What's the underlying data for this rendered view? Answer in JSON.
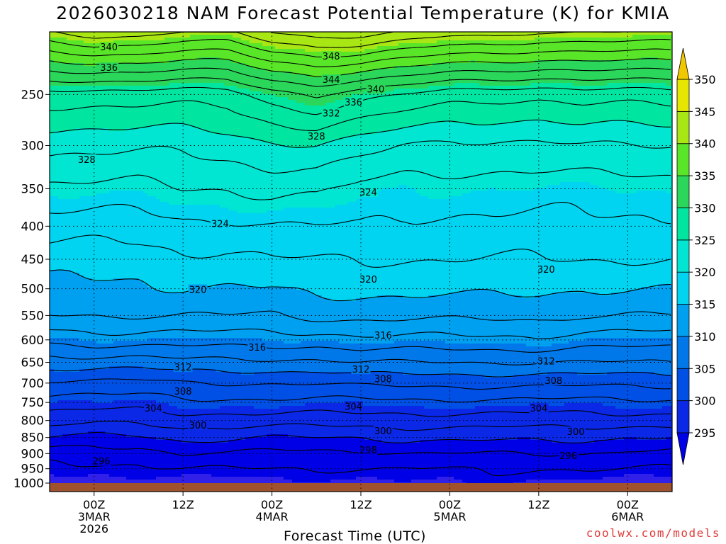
{
  "title": "2026030218 NAM Forecast Potential Temperature (K) for KMIA",
  "xlabel": "Forecast Time (UTC)",
  "credit": "coolwx.com/models",
  "chart_data": {
    "type": "heatmap",
    "variable": "Potential Temperature (K)",
    "y_axis": {
      "quantity": "pressure (hPa)",
      "scale": "log-pressure, inverted",
      "range": [
        1000,
        200
      ],
      "tick_labels": [
        "250",
        "300",
        "350",
        "400",
        "450",
        "500",
        "550",
        "600",
        "650",
        "700",
        "750",
        "800",
        "850",
        "900",
        "950",
        "1000"
      ],
      "tick_values": [
        250,
        300,
        350,
        400,
        450,
        500,
        550,
        600,
        650,
        700,
        750,
        800,
        850,
        900,
        950,
        1000
      ]
    },
    "x_axis": {
      "quantity": "forecast valid time (UTC)",
      "range": [
        "2026-03-02 18Z",
        "2026-03-06 06Z"
      ],
      "ticks": [
        {
          "time": "2026-03-03 00Z",
          "label": [
            "00Z",
            "3MAR",
            "2026"
          ]
        },
        {
          "time": "2026-03-03 12Z",
          "label": [
            "12Z"
          ]
        },
        {
          "time": "2026-03-04 00Z",
          "label": [
            "00Z",
            "4MAR"
          ]
        },
        {
          "time": "2026-03-04 12Z",
          "label": [
            "12Z"
          ]
        },
        {
          "time": "2026-03-05 00Z",
          "label": [
            "00Z",
            "5MAR"
          ]
        },
        {
          "time": "2026-03-05 12Z",
          "label": [
            "12Z"
          ]
        },
        {
          "time": "2026-03-06 00Z",
          "label": [
            "00Z",
            "6MAR"
          ]
        }
      ]
    },
    "colorbar": {
      "labels": [
        "295",
        "300",
        "305",
        "310",
        "315",
        "320",
        "325",
        "330",
        "335",
        "340",
        "345",
        "350"
      ],
      "bounds": [
        290,
        295,
        300,
        305,
        310,
        315,
        320,
        325,
        330,
        335,
        340,
        345,
        350,
        355
      ],
      "colors": [
        "#3020e8",
        "#0000e6",
        "#0a28e6",
        "#0050e6",
        "#0078ea",
        "#00a0f0",
        "#00d4f0",
        "#00e6d2",
        "#00e6a0",
        "#2ad75a",
        "#5ae628",
        "#a8e614",
        "#e6e600",
        "#f0c800"
      ],
      "extend": "both"
    },
    "levels_hpa": [
      1000,
      950,
      900,
      850,
      800,
      750,
      700,
      650,
      600,
      550,
      500,
      450,
      400,
      350,
      300,
      250,
      200
    ],
    "series": [
      {
        "time": "2026-03-02 18Z",
        "theta": [
          294,
          295.5,
          297,
          300,
          303,
          305,
          307.5,
          311,
          314.5,
          318,
          319.5,
          321,
          323,
          325.5,
          328.5,
          333,
          346
        ]
      },
      {
        "time": "2026-03-03 00Z",
        "theta": [
          294,
          295.5,
          297,
          299.5,
          302.5,
          305,
          307.5,
          311,
          315,
          318,
          319.5,
          321,
          323,
          325.5,
          328.5,
          333,
          347
        ]
      },
      {
        "time": "2026-03-03 06Z",
        "theta": [
          294.5,
          295.5,
          297,
          299.5,
          302.5,
          305,
          307.5,
          311,
          315,
          318,
          319.5,
          321,
          323,
          325.5,
          328.5,
          333,
          347
        ]
      },
      {
        "time": "2026-03-03 12Z",
        "theta": [
          294.5,
          296,
          298,
          300.5,
          303,
          305.5,
          308,
          311.5,
          315,
          318,
          320,
          321.5,
          323.5,
          326,
          328.5,
          333,
          346
        ]
      },
      {
        "time": "2026-03-03 18Z",
        "theta": [
          294.5,
          296,
          298,
          300.5,
          303,
          305.5,
          308,
          311.5,
          315,
          318,
          320,
          321.5,
          323.5,
          326,
          329,
          333,
          346
        ]
      },
      {
        "time": "2026-03-04 00Z",
        "theta": [
          294.5,
          296,
          297.5,
          300,
          303,
          305.5,
          308,
          311.5,
          315,
          318,
          320,
          322,
          324,
          326.5,
          329.5,
          335,
          348
        ]
      },
      {
        "time": "2026-03-04 06Z",
        "theta": [
          294.5,
          296,
          297.5,
          300,
          303,
          305.5,
          308,
          311.5,
          315,
          318.5,
          320.5,
          322,
          324,
          326.5,
          330,
          336,
          349
        ]
      },
      {
        "time": "2026-03-04 12Z",
        "theta": [
          294.5,
          296,
          297.5,
          300,
          303,
          305.5,
          308.5,
          312,
          315.5,
          318.5,
          320.5,
          322,
          324,
          325.5,
          329,
          335,
          349
        ]
      },
      {
        "time": "2026-03-04 18Z",
        "theta": [
          295,
          296,
          298,
          300.5,
          303,
          305.5,
          308.5,
          312,
          315.5,
          318.5,
          320.5,
          322,
          323.5,
          325,
          328,
          334,
          348
        ]
      },
      {
        "time": "2026-03-05 00Z",
        "theta": [
          295,
          296,
          298,
          300.5,
          303,
          305.5,
          308.5,
          312,
          315.5,
          318.5,
          320.5,
          322,
          323.5,
          325,
          327.5,
          333,
          347
        ]
      },
      {
        "time": "2026-03-05 06Z",
        "theta": [
          295,
          296.5,
          298,
          300.5,
          303,
          305.5,
          308.5,
          312,
          315.5,
          318.5,
          320.5,
          322,
          323.5,
          325,
          327.5,
          332.5,
          347
        ]
      },
      {
        "time": "2026-03-05 12Z",
        "theta": [
          294.5,
          296,
          298,
          300.5,
          303,
          305.5,
          308.5,
          312,
          315.5,
          318.5,
          320.5,
          322,
          323.5,
          325,
          327.5,
          332.5,
          346
        ]
      },
      {
        "time": "2026-03-05 18Z",
        "theta": [
          294.5,
          296,
          298,
          300.5,
          303,
          305.5,
          308.5,
          312,
          315,
          318,
          320,
          322,
          323.5,
          325,
          328,
          333,
          346
        ]
      },
      {
        "time": "2026-03-06 00Z",
        "theta": [
          294.5,
          296,
          297.5,
          300,
          303,
          305.5,
          308.5,
          312,
          315,
          318,
          320,
          322,
          323.5,
          325,
          328,
          333,
          346
        ]
      },
      {
        "time": "2026-03-06 06Z",
        "theta": [
          294.5,
          296,
          297.5,
          300,
          303,
          305.5,
          308.5,
          312,
          315,
          318,
          320,
          322,
          323.5,
          325,
          328,
          333,
          346
        ]
      }
    ],
    "contours": {
      "interval": 2,
      "range": [
        294,
        348
      ],
      "labels": [
        {
          "text": "340",
          "time": "2026-03-03 02Z",
          "hpa": 211
        },
        {
          "text": "336",
          "time": "2026-03-03 02Z",
          "hpa": 227
        },
        {
          "text": "328",
          "time": "2026-03-02 23Z",
          "hpa": 315
        },
        {
          "text": "348",
          "time": "2026-03-04 08Z",
          "hpa": 218
        },
        {
          "text": "344",
          "time": "2026-03-04 08Z",
          "hpa": 237
        },
        {
          "text": "340",
          "time": "2026-03-04 14Z",
          "hpa": 245
        },
        {
          "text": "336",
          "time": "2026-03-04 11Z",
          "hpa": 257
        },
        {
          "text": "332",
          "time": "2026-03-04 08Z",
          "hpa": 267
        },
        {
          "text": "328",
          "time": "2026-03-04 06Z",
          "hpa": 290
        },
        {
          "text": "324",
          "time": "2026-03-04 13Z",
          "hpa": 354
        },
        {
          "text": "324",
          "time": "2026-03-03 17Z",
          "hpa": 396
        },
        {
          "text": "320",
          "time": "2026-03-03 14Z",
          "hpa": 501
        },
        {
          "text": "320",
          "time": "2026-03-04 13Z",
          "hpa": 483
        },
        {
          "text": "320",
          "time": "2026-03-05 13Z",
          "hpa": 466
        },
        {
          "text": "316",
          "time": "2026-03-03 22Z",
          "hpa": 616
        },
        {
          "text": "316",
          "time": "2026-03-04 15Z",
          "hpa": 590
        },
        {
          "text": "312",
          "time": "2026-03-03 12Z",
          "hpa": 661
        },
        {
          "text": "312",
          "time": "2026-03-04 12Z",
          "hpa": 666
        },
        {
          "text": "312",
          "time": "2026-03-05 13Z",
          "hpa": 647
        },
        {
          "text": "308",
          "time": "2026-03-03 12Z",
          "hpa": 720
        },
        {
          "text": "308",
          "time": "2026-03-04 15Z",
          "hpa": 689
        },
        {
          "text": "308",
          "time": "2026-03-05 14Z",
          "hpa": 693
        },
        {
          "text": "304",
          "time": "2026-03-03 08Z",
          "hpa": 765
        },
        {
          "text": "304",
          "time": "2026-03-04 11Z",
          "hpa": 760
        },
        {
          "text": "304",
          "time": "2026-03-05 12Z",
          "hpa": 765
        },
        {
          "text": "300",
          "time": "2026-03-03 14Z",
          "hpa": 813
        },
        {
          "text": "300",
          "time": "2026-03-04 15Z",
          "hpa": 829
        },
        {
          "text": "300",
          "time": "2026-03-05 17Z",
          "hpa": 832
        },
        {
          "text": "298",
          "time": "2026-03-04 13Z",
          "hpa": 888
        },
        {
          "text": "296",
          "time": "2026-03-03 01Z",
          "hpa": 924
        },
        {
          "text": "296",
          "time": "2026-03-05 16Z",
          "hpa": 906
        }
      ]
    },
    "grid": "dotted",
    "legend": "right colorbar"
  }
}
